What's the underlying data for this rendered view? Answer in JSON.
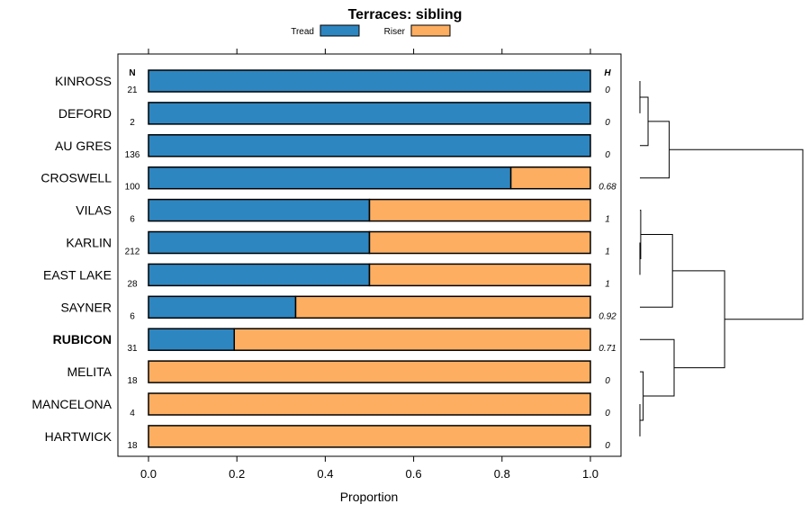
{
  "chart_data": {
    "type": "bar",
    "stacked": true,
    "orientation": "horizontal",
    "title": "Terraces: sibling",
    "xlabel": "Proportion",
    "xlim": [
      0,
      1
    ],
    "x_ticks": [
      "0.0",
      "0.2",
      "0.4",
      "0.6",
      "0.8",
      "1.0"
    ],
    "legend": {
      "placement": "top",
      "entries": [
        "Tread",
        "Riser"
      ]
    },
    "n_header": "N",
    "h_header": "H",
    "categories": [
      "KINROSS",
      "DEFORD",
      "AU GRES",
      "CROSWELL",
      "VILAS",
      "KARLIN",
      "EAST LAKE",
      "SAYNER",
      "RUBICON",
      "MELITA",
      "MANCELONA",
      "HARTWICK"
    ],
    "highlighted": "RUBICON",
    "n": [
      "21",
      "2",
      "136",
      "100",
      "6",
      "212",
      "28",
      "6",
      "31",
      "18",
      "4",
      "18"
    ],
    "h": [
      "0",
      "0",
      "0",
      "0.68",
      "1",
      "1",
      "1",
      "0.92",
      "0.71",
      "0",
      "0",
      "0"
    ],
    "series": [
      {
        "name": "Tread",
        "color": "#2e86c1",
        "values": [
          1.0,
          1.0,
          1.0,
          0.82,
          0.5,
          0.5,
          0.5,
          0.333,
          0.194,
          0.0,
          0.0,
          0.0
        ]
      },
      {
        "name": "Riser",
        "color": "#fdae61",
        "values": [
          0.0,
          0.0,
          0.0,
          0.18,
          0.5,
          0.5,
          0.5,
          0.667,
          0.806,
          1.0,
          1.0,
          1.0
        ]
      }
    ],
    "dendrogram": {
      "leaf_order": [
        "KINROSS",
        "DEFORD",
        "AU GRES",
        "CROSWELL",
        "VILAS",
        "KARLIN",
        "EAST LAKE",
        "SAYNER",
        "RUBICON",
        "MELITA",
        "MANCELONA",
        "HARTWICK"
      ],
      "merges": [
        [
          "KINROSS",
          "DEFORD",
          0.0
        ],
        [
          "KINROSS+DEFORD",
          "AU GRES",
          0.05
        ],
        [
          "KINROSS+DEFORD+AU GRES",
          "CROSWELL",
          0.18
        ],
        [
          "KARLIN",
          "EAST LAKE",
          0.0
        ],
        [
          "VILAS",
          "KARLIN+EAST LAKE",
          0.005
        ],
        [
          "VILAS+KARLIN+EAST LAKE",
          "SAYNER",
          0.2
        ],
        [
          "MANCELONA",
          "HARTWICK",
          0.0
        ],
        [
          "MELITA",
          "MANCELONA+HARTWICK",
          0.02
        ],
        [
          "RUBICON",
          "MELITA+MANCELONA+HARTWICK",
          0.21
        ],
        [
          "VILAS+KARLIN+EAST LAKE+SAYNER",
          "RUBICON+MELITA+MANCELONA+HARTWICK",
          0.52
        ],
        [
          "KINROSS+DEFORD+AU GRES+CROSWELL",
          "VILAS+KARLIN+EAST LAKE+SAYNER+RUBICON+MELITA+MANCELONA+HARTWICK",
          1.0
        ]
      ]
    }
  }
}
